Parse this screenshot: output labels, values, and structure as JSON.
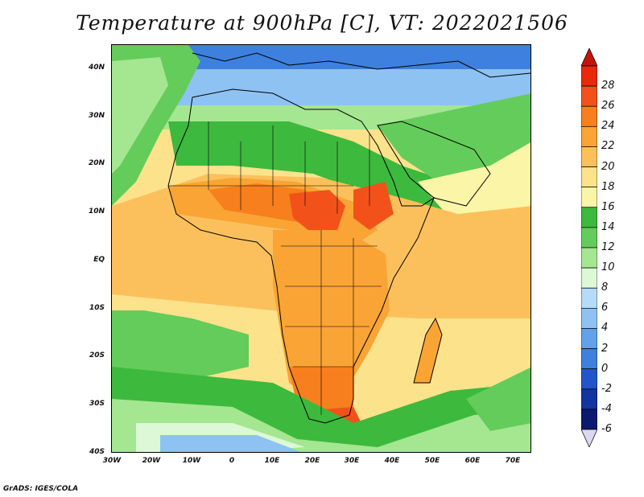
{
  "title": "Temperature at 900hPa [C], VT: 2022021506",
  "credit": "GrADS: IGES/COLA",
  "lat_labels": [
    "40N",
    "30N",
    "20N",
    "10N",
    "EQ",
    "10S",
    "20S",
    "30S",
    "40S"
  ],
  "lon_labels": [
    "30W",
    "20W",
    "10W",
    "0",
    "10E",
    "20E",
    "30E",
    "40E",
    "50E",
    "60E",
    "70E"
  ],
  "colorbar": {
    "labels": [
      "28",
      "26",
      "24",
      "22",
      "20",
      "18",
      "16",
      "14",
      "12",
      "10",
      "8",
      "6",
      "4",
      "2",
      "0",
      "-2",
      "-4",
      "-6"
    ],
    "colors": [
      "#e8290b",
      "#f2521a",
      "#f77f1e",
      "#f9a435",
      "#fbc05c",
      "#fde28c",
      "#fbf5a8",
      "#3db93d",
      "#64cc5a",
      "#a5e691",
      "#dcf8d6",
      "#b5dbf8",
      "#8ec2f2",
      "#62a2ea",
      "#3e80dd",
      "#2156c8",
      "#1235a0",
      "#0b1a6e"
    ],
    "top_arrow_color": "#c0150a",
    "bottom_arrow_color": "#dcd8f2"
  },
  "map_colors": {
    "ocean_cool": "#64cc5a",
    "ocean_mild": "#fde28c",
    "ocean_warm": "#fbc05c",
    "land_hot": "#f77f1e",
    "land_very_hot": "#f2521a",
    "sahara": "#3db93d",
    "mediterranean": "#a5e691",
    "north": "#8ec2f2",
    "far_north": "#3e80dd",
    "southern": "#dcf8d6"
  }
}
